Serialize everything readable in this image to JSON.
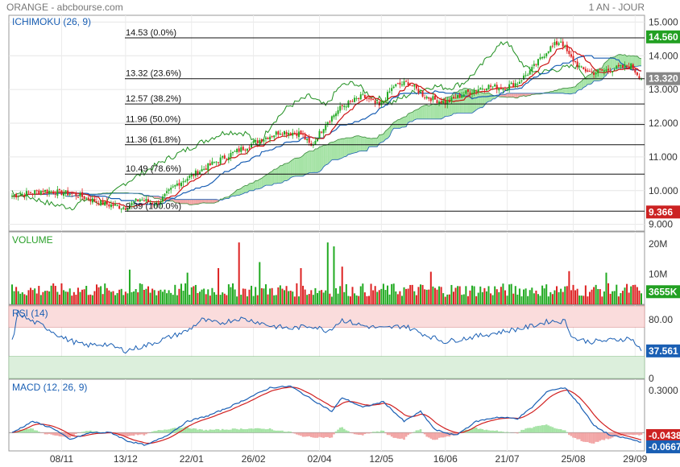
{
  "header": {
    "instrument": "ORANGE - abcbourse.com",
    "period": "1 AN - JOUR"
  },
  "colors": {
    "up": "#22aa22",
    "down": "#dd2222",
    "kijun": "#1a5fb4",
    "tenkan": "#cc1111",
    "chikou": "#1f8f1f",
    "cloud_bull": "#a6e3a6",
    "cloud_bear": "#f2a6a6",
    "panel_label": "#1a5fb4",
    "volume_label": "#2aa02a",
    "rsi_high_zone": "#fadcdc",
    "rsi_low_zone": "#dcefdc",
    "macd_signal": "#d11f1f",
    "macd_line": "#1a5fb4",
    "badge_green": "#22a022",
    "badge_red": "#cc2222"
  },
  "x_labels": [
    "08/11",
    "13/12",
    "22/01",
    "26/02",
    "02/04",
    "12/05",
    "16/06",
    "21/07",
    "25/08",
    "29/09"
  ],
  "chart_data": [
    {
      "type": "line",
      "subtype": "candlestick-ichimoku",
      "title": "ICHIMOKU (26, 9)",
      "ylim": [
        8.8,
        15.2
      ],
      "y_ticks": [
        "15.000",
        "14.000",
        "13.000",
        "12.000",
        "11.000",
        "10.000",
        "9.000"
      ],
      "y_tick_values": [
        15,
        14,
        13,
        12,
        11,
        10,
        9
      ],
      "last_price": "13.320",
      "last_price_value": 13.32,
      "high_badge": "14.560",
      "high_badge_value": 14.56,
      "low_badge": "9.366",
      "low_badge_value": 9.366,
      "fibonacci": [
        {
          "label": "14.53  (0.0%)",
          "value": 14.53
        },
        {
          "label": "13.32  (23.6%)",
          "value": 13.32
        },
        {
          "label": "12.57  (38.2%)",
          "value": 12.57
        },
        {
          "label": "11.96  (50.0%)",
          "value": 11.96
        },
        {
          "label": "11.36  (61.8%)",
          "value": 11.36
        },
        {
          "label": "10.49  (78.6%)",
          "value": 10.49
        },
        {
          "label": "9.39  (100.0%)",
          "value": 9.39
        }
      ],
      "close_keypoints": [
        [
          0,
          9.85
        ],
        [
          15,
          10.0
        ],
        [
          30,
          9.9
        ],
        [
          45,
          9.6
        ],
        [
          55,
          9.5
        ],
        [
          62,
          9.75
        ],
        [
          70,
          9.6
        ],
        [
          80,
          10.2
        ],
        [
          90,
          10.55
        ],
        [
          100,
          10.9
        ],
        [
          110,
          11.2
        ],
        [
          120,
          11.5
        ],
        [
          130,
          11.75
        ],
        [
          140,
          11.7
        ],
        [
          145,
          11.3
        ],
        [
          152,
          12.0
        ],
        [
          160,
          12.5
        ],
        [
          170,
          12.8
        ],
        [
          178,
          12.5
        ],
        [
          185,
          13.1
        ],
        [
          192,
          13.2
        ],
        [
          200,
          12.8
        ],
        [
          210,
          12.6
        ],
        [
          220,
          12.9
        ],
        [
          230,
          13.1
        ],
        [
          238,
          13.05
        ],
        [
          245,
          13.2
        ],
        [
          252,
          13.6
        ],
        [
          260,
          14.2
        ],
        [
          266,
          14.45
        ],
        [
          270,
          14.0
        ],
        [
          276,
          13.6
        ],
        [
          282,
          13.5
        ],
        [
          290,
          13.6
        ],
        [
          300,
          13.7
        ],
        [
          305,
          13.32
        ]
      ],
      "volume_first_month_indices": [
        0
      ]
    },
    {
      "type": "bar",
      "title": "VOLUME",
      "ylim": [
        0,
        24000000
      ],
      "y_ticks": [
        "20M",
        "10M"
      ],
      "y_tick_values": [
        20000000,
        10000000
      ],
      "last_value": "3655K",
      "last_value_number": 3655000,
      "spikes": [
        [
          57,
          11.5
        ],
        [
          85,
          10.5
        ],
        [
          100,
          12
        ],
        [
          110,
          20.5
        ],
        [
          120,
          14
        ],
        [
          140,
          12
        ],
        [
          153,
          20.5
        ],
        [
          156,
          19.2
        ],
        [
          160,
          12.5
        ],
        [
          203,
          10.8
        ],
        [
          270,
          11.0
        ],
        [
          288,
          10.5
        ]
      ]
    },
    {
      "type": "line",
      "title": "RSI (14)",
      "ylim": [
        0,
        100
      ],
      "y_ticks": [
        "80.00",
        "0"
      ],
      "y_tick_values": [
        80,
        0
      ],
      "overbought": 70,
      "oversold": 30,
      "last_value": "37.561",
      "last_value_number": 37.561,
      "keypoints": [
        [
          0,
          50
        ],
        [
          3,
          90
        ],
        [
          8,
          80
        ],
        [
          15,
          72
        ],
        [
          25,
          55
        ],
        [
          35,
          45
        ],
        [
          45,
          47
        ],
        [
          55,
          38
        ],
        [
          58,
          40
        ],
        [
          65,
          45
        ],
        [
          75,
          55
        ],
        [
          85,
          65
        ],
        [
          92,
          80
        ],
        [
          100,
          75
        ],
        [
          110,
          82
        ],
        [
          118,
          78
        ],
        [
          125,
          72
        ],
        [
          135,
          68
        ],
        [
          145,
          72
        ],
        [
          153,
          65
        ],
        [
          160,
          80
        ],
        [
          170,
          72
        ],
        [
          180,
          68
        ],
        [
          190,
          72
        ],
        [
          200,
          60
        ],
        [
          210,
          50
        ],
        [
          220,
          55
        ],
        [
          230,
          60
        ],
        [
          240,
          65
        ],
        [
          250,
          70
        ],
        [
          260,
          78
        ],
        [
          268,
          78
        ],
        [
          272,
          55
        ],
        [
          280,
          50
        ],
        [
          290,
          52
        ],
        [
          300,
          55
        ],
        [
          305,
          37.561
        ]
      ]
    },
    {
      "type": "line",
      "title": "MACD (12, 26, 9)",
      "ylim": [
        -0.13,
        0.38
      ],
      "y_ticks": [
        "0.3000"
      ],
      "y_tick_values": [
        0.3
      ],
      "last_signal": "-0.0438",
      "last_signal_value": -0.0438,
      "last_macd": "-0.0667",
      "last_macd_value": -0.0667,
      "macd_keypoints": [
        [
          0,
          0.0
        ],
        [
          10,
          0.08
        ],
        [
          20,
          0.03
        ],
        [
          28,
          -0.05
        ],
        [
          38,
          0.0
        ],
        [
          48,
          0.0
        ],
        [
          56,
          -0.06
        ],
        [
          65,
          -0.09
        ],
        [
          75,
          -0.02
        ],
        [
          85,
          0.08
        ],
        [
          95,
          0.12
        ],
        [
          105,
          0.18
        ],
        [
          115,
          0.25
        ],
        [
          125,
          0.32
        ],
        [
          135,
          0.33
        ],
        [
          145,
          0.24
        ],
        [
          155,
          0.15
        ],
        [
          160,
          0.25
        ],
        [
          170,
          0.18
        ],
        [
          180,
          0.22
        ],
        [
          190,
          0.08
        ],
        [
          198,
          0.15
        ],
        [
          205,
          0.02
        ],
        [
          215,
          -0.02
        ],
        [
          225,
          0.08
        ],
        [
          235,
          0.11
        ],
        [
          245,
          0.1
        ],
        [
          252,
          0.18
        ],
        [
          260,
          0.3
        ],
        [
          268,
          0.32
        ],
        [
          275,
          0.2
        ],
        [
          282,
          0.05
        ],
        [
          290,
          -0.02
        ],
        [
          298,
          -0.04
        ],
        [
          305,
          -0.0667
        ]
      ]
    }
  ]
}
